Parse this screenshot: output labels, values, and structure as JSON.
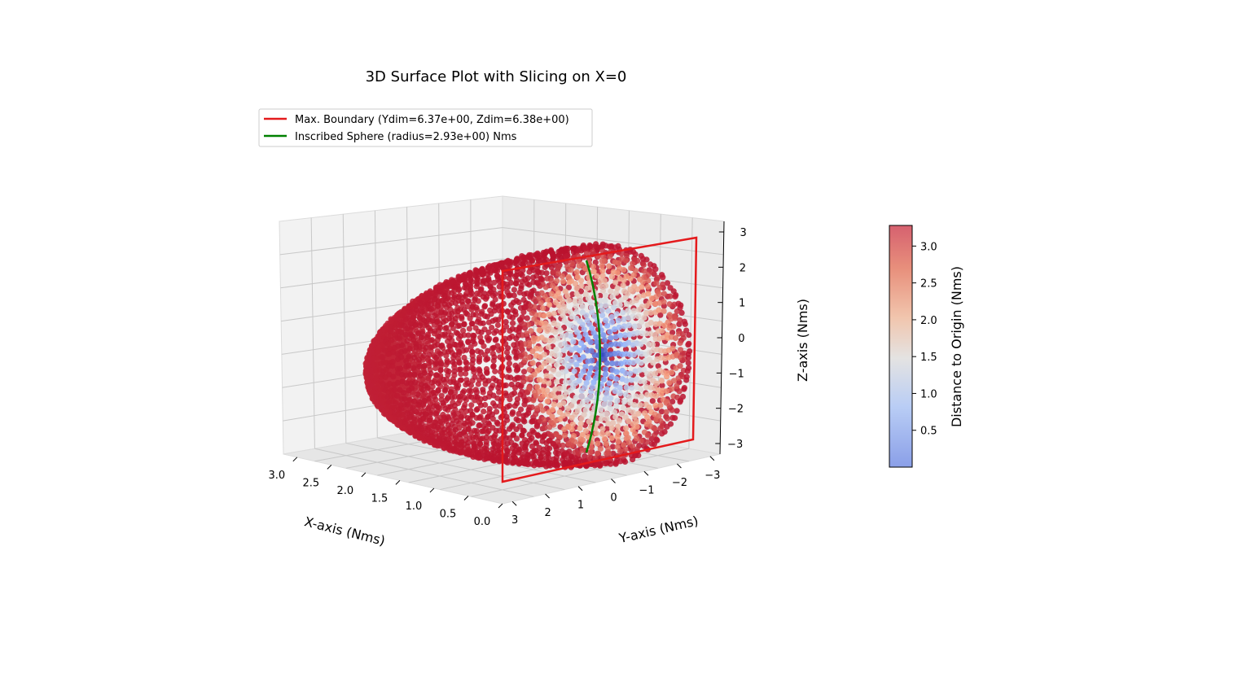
{
  "chart_data": {
    "type": "scatter",
    "title": "3D Surface Plot with Slicing on X=0",
    "xlabel": "X-axis (Nms)",
    "ylabel": "Y-axis (Nms)",
    "zlabel": "Z-axis (Nms)",
    "colorbar_label": "Distance to Origin (Nms)",
    "colormap": "coolwarm",
    "grid": true,
    "legend_placement": "upper-left",
    "x_ticks": [
      "0.0",
      "0.5",
      "1.0",
      "1.5",
      "2.0",
      "2.5",
      "3.0"
    ],
    "y_ticks": [
      "3",
      "2",
      "1",
      "0",
      "−1",
      "−2",
      "−3"
    ],
    "z_ticks": [
      "3",
      "2",
      "1",
      "0",
      "−1",
      "−2",
      "−3"
    ],
    "colorbar_ticks": [
      "0.5",
      "1.0",
      "1.5",
      "2.0",
      "2.5",
      "3.0"
    ],
    "colorbar_range": [
      0.0,
      3.28
    ],
    "xlim": [
      0,
      3.2
    ],
    "ylim": [
      -3.3,
      3.3
    ],
    "zlim": [
      -3.3,
      3.3
    ],
    "series": [
      {
        "name": "Max. Boundary (Ydim=6.37e+00, Zdim=6.38e+00)",
        "kind": "rectangle at X=0",
        "color": "#e41a1c",
        "y_range": [
          -3.185,
          3.185
        ],
        "z_range": [
          -3.19,
          3.19
        ]
      },
      {
        "name": "Inscribed Sphere (radius=2.93e+00) Nms",
        "kind": "half circle at X=0",
        "color": "#008000",
        "radius": 2.93
      },
      {
        "name": "",
        "kind": "half-ellipsoid point cloud (X >= 0), colored by distance to origin",
        "x_range": [
          0,
          3.1
        ],
        "y_range": [
          -3.2,
          3.2
        ],
        "z_range": [
          -3.2,
          3.2
        ]
      }
    ]
  }
}
